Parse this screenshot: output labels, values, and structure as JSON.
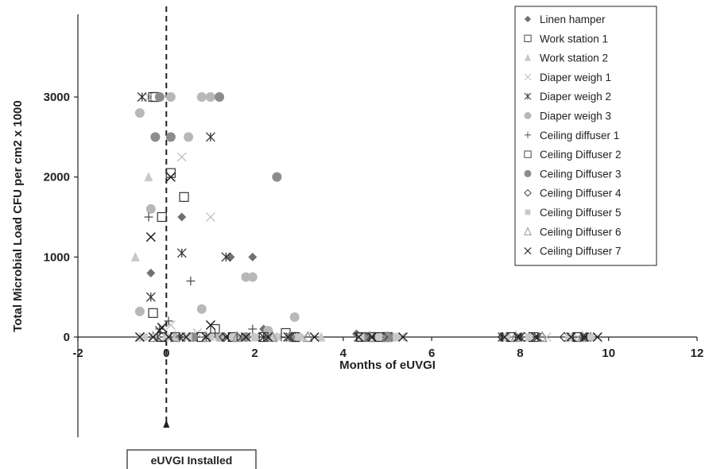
{
  "chart_data": {
    "type": "scatter",
    "title": "",
    "xlabel": "Months of eUVGI",
    "ylabel": "Total Microbial Load CFU per cm2 x 1000",
    "xlim": [
      -2,
      12
    ],
    "ylim": [
      0,
      3000
    ],
    "x_ticks": [
      -2,
      0,
      2,
      4,
      6,
      8,
      10,
      12
    ],
    "y_ticks": [
      0,
      1000,
      2000,
      3000
    ],
    "grid": false,
    "legend_position": "top-right",
    "vertical_marker": {
      "x": 0,
      "style": "dashed",
      "label": "eUVGI Installed"
    },
    "series": [
      {
        "name": "Linen hamper",
        "marker": "diamond-filled",
        "color": "#707070",
        "points": [
          [
            -0.35,
            800
          ],
          [
            0.35,
            1500
          ],
          [
            0.95,
            3000
          ],
          [
            1.45,
            1000
          ],
          [
            1.95,
            1000
          ],
          [
            2.2,
            100
          ],
          [
            -0.5,
            0
          ],
          [
            0.3,
            0
          ],
          [
            1.0,
            0
          ],
          [
            1.8,
            0
          ],
          [
            2.5,
            0
          ],
          [
            4.3,
            40
          ],
          [
            4.7,
            0
          ],
          [
            5.0,
            0
          ],
          [
            7.6,
            10
          ],
          [
            8.0,
            0
          ],
          [
            9.1,
            0
          ],
          [
            9.4,
            0
          ]
        ]
      },
      {
        "name": "Work station 1",
        "marker": "square-open",
        "color": "#333333",
        "points": [
          [
            -0.1,
            1500
          ],
          [
            0.1,
            2050
          ],
          [
            0.4,
            1750
          ],
          [
            -0.3,
            300
          ],
          [
            1.1,
            100
          ],
          [
            -0.25,
            3000
          ],
          [
            2.7,
            50
          ],
          [
            2.9,
            0
          ],
          [
            4.6,
            0
          ],
          [
            4.9,
            0
          ]
        ]
      },
      {
        "name": "Work station 2",
        "marker": "triangle-filled",
        "color": "#c8c8c8",
        "points": [
          [
            -0.7,
            1000
          ],
          [
            -0.4,
            2000
          ],
          [
            -0.6,
            0
          ],
          [
            -0.2,
            0
          ],
          [
            0.2,
            0
          ],
          [
            0.6,
            0
          ],
          [
            1.2,
            0
          ],
          [
            1.6,
            0
          ],
          [
            2.0,
            0
          ],
          [
            2.4,
            0
          ],
          [
            2.8,
            0
          ],
          [
            3.5,
            0
          ],
          [
            4.5,
            0
          ],
          [
            5.1,
            0
          ],
          [
            7.7,
            0
          ],
          [
            8.2,
            0
          ],
          [
            9.2,
            0
          ],
          [
            9.6,
            0
          ]
        ]
      },
      {
        "name": "Diaper weigh 1",
        "marker": "x-light",
        "color": "#b8b8b8",
        "points": [
          [
            -0.4,
            3000
          ],
          [
            0.35,
            2250
          ],
          [
            1.0,
            1500
          ],
          [
            0.1,
            150
          ],
          [
            0.7,
            50
          ],
          [
            1.4,
            0
          ],
          [
            3.1,
            0
          ],
          [
            4.6,
            0
          ],
          [
            5.3,
            0
          ],
          [
            7.8,
            0
          ],
          [
            8.6,
            0
          ],
          [
            9.3,
            0
          ]
        ]
      },
      {
        "name": "Diaper weigh 2",
        "marker": "asterisk",
        "color": "#333333",
        "points": [
          [
            -0.55,
            3000
          ],
          [
            1.0,
            2500
          ],
          [
            0.35,
            1050
          ],
          [
            1.35,
            1000
          ],
          [
            -0.35,
            500
          ],
          [
            -0.15,
            80
          ],
          [
            0.6,
            0
          ],
          [
            1.7,
            0
          ],
          [
            2.2,
            0
          ],
          [
            2.8,
            0
          ],
          [
            4.4,
            0
          ],
          [
            4.8,
            0
          ],
          [
            5.0,
            0
          ],
          [
            7.6,
            0
          ],
          [
            8.0,
            0
          ],
          [
            8.4,
            0
          ],
          [
            9.1,
            0
          ],
          [
            9.5,
            0
          ]
        ]
      },
      {
        "name": "Diaper weigh 3",
        "marker": "circle-filled",
        "color": "#b8b8b8",
        "points": [
          [
            -0.6,
            2800
          ],
          [
            0.1,
            3000
          ],
          [
            0.8,
            3000
          ],
          [
            1.0,
            3000
          ],
          [
            0.5,
            2500
          ],
          [
            -0.35,
            1600
          ],
          [
            1.8,
            750
          ],
          [
            1.95,
            750
          ],
          [
            0.8,
            350
          ],
          [
            2.9,
            250
          ],
          [
            -0.6,
            320
          ],
          [
            2.3,
            80
          ],
          [
            1.2,
            0
          ],
          [
            3.0,
            0
          ],
          [
            4.5,
            0
          ],
          [
            5.1,
            0
          ]
        ]
      },
      {
        "name": "Ceiling diffuser 1",
        "marker": "plus",
        "color": "#444444",
        "points": [
          [
            -0.4,
            1500
          ],
          [
            0.55,
            700
          ],
          [
            0.05,
            200
          ],
          [
            -0.15,
            100
          ],
          [
            1.95,
            100
          ],
          [
            1.1,
            50
          ],
          [
            0.3,
            0
          ],
          [
            2.6,
            0
          ],
          [
            4.6,
            0
          ],
          [
            7.7,
            0
          ],
          [
            9.2,
            0
          ]
        ]
      },
      {
        "name": "Ceiling Diffuser 2",
        "marker": "square-open",
        "color": "#333333",
        "points": [
          [
            -0.3,
            3000
          ],
          [
            -0.1,
            0
          ],
          [
            0.2,
            0
          ],
          [
            0.8,
            0
          ],
          [
            1.5,
            0
          ],
          [
            2.2,
            0
          ],
          [
            2.9,
            0
          ],
          [
            4.4,
            0
          ],
          [
            4.7,
            0
          ],
          [
            5.0,
            0
          ],
          [
            7.8,
            0
          ],
          [
            8.3,
            0
          ],
          [
            9.3,
            0
          ]
        ]
      },
      {
        "name": "Ceiling Diffuser 3",
        "marker": "circle-filled",
        "color": "#8c8c8c",
        "points": [
          [
            -0.15,
            3000
          ],
          [
            0.1,
            2500
          ],
          [
            1.2,
            3000
          ],
          [
            -0.25,
            2500
          ],
          [
            2.5,
            2000
          ],
          [
            0.6,
            0
          ],
          [
            1.8,
            0
          ],
          [
            2.8,
            0
          ],
          [
            4.5,
            0
          ],
          [
            5.0,
            0
          ]
        ]
      },
      {
        "name": "Ceiling Diffuser 4",
        "marker": "diamond-open",
        "color": "#333333",
        "points": [
          [
            -0.1,
            0
          ],
          [
            0.4,
            0
          ],
          [
            1.3,
            0
          ],
          [
            2.1,
            0
          ],
          [
            2.9,
            0
          ],
          [
            4.5,
            0
          ],
          [
            4.9,
            0
          ],
          [
            7.6,
            0
          ],
          [
            8.1,
            0
          ],
          [
            9.0,
            0
          ],
          [
            9.5,
            0
          ]
        ]
      },
      {
        "name": "Ceiling Diffuser 5",
        "marker": "square-filled",
        "color": "#c8c8c8",
        "points": [
          [
            -0.5,
            0
          ],
          [
            0.0,
            0
          ],
          [
            0.5,
            0
          ],
          [
            1.0,
            0
          ],
          [
            1.5,
            0
          ],
          [
            2.0,
            0
          ],
          [
            2.5,
            0
          ],
          [
            3.0,
            0
          ],
          [
            4.4,
            0
          ],
          [
            4.8,
            0
          ],
          [
            5.2,
            0
          ],
          [
            7.7,
            0
          ],
          [
            8.2,
            0
          ],
          [
            9.1,
            0
          ],
          [
            9.6,
            0
          ]
        ]
      },
      {
        "name": "Ceiling Diffuser 6",
        "marker": "triangle-open",
        "color": "#8c8c8c",
        "points": [
          [
            -0.3,
            0
          ],
          [
            0.2,
            0
          ],
          [
            0.9,
            0
          ],
          [
            1.6,
            0
          ],
          [
            2.4,
            0
          ],
          [
            3.2,
            0
          ],
          [
            4.6,
            0
          ],
          [
            5.0,
            0
          ],
          [
            7.9,
            0
          ],
          [
            8.5,
            0
          ],
          [
            9.4,
            0
          ]
        ]
      },
      {
        "name": "Ceiling Diffuser 7",
        "marker": "x-dark",
        "color": "#222222",
        "points": [
          [
            -0.35,
            1250
          ],
          [
            0.1,
            2000
          ],
          [
            1.0,
            150
          ],
          [
            -0.1,
            120
          ],
          [
            -0.6,
            0
          ],
          [
            -0.3,
            0
          ],
          [
            0.05,
            0
          ],
          [
            0.45,
            0
          ],
          [
            0.9,
            0
          ],
          [
            1.35,
            0
          ],
          [
            1.8,
            0
          ],
          [
            2.3,
            0
          ],
          [
            2.75,
            0
          ],
          [
            3.35,
            0
          ],
          [
            4.35,
            0
          ],
          [
            4.65,
            0
          ],
          [
            5.35,
            0
          ],
          [
            7.65,
            0
          ],
          [
            7.95,
            0
          ],
          [
            8.35,
            0
          ],
          [
            9.15,
            0
          ],
          [
            9.45,
            0
          ],
          [
            9.75,
            0
          ]
        ]
      }
    ]
  }
}
